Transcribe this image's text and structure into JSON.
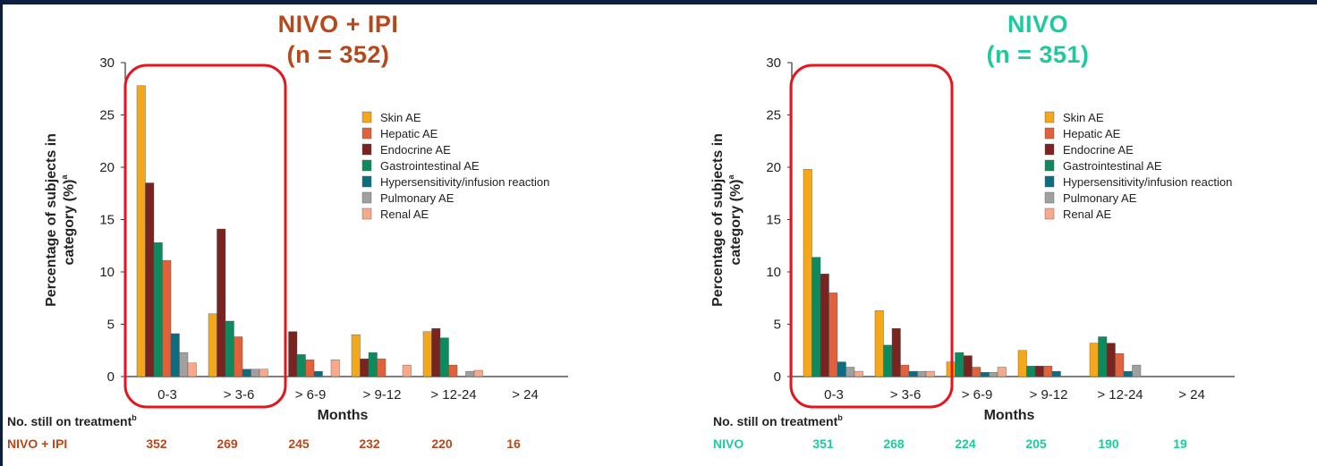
{
  "colors": {
    "skin": "#f5a71c",
    "hepatic": "#e0613a",
    "endocrine": "#7a2320",
    "gastrointestinal": "#0f8a5f",
    "hypersensitivity": "#0d6d80",
    "pulmonary": "#a0a0a0",
    "renal": "#f7a98a",
    "title_combo": "#b8471a",
    "title_mono": "#1fc9a0",
    "highlight": "#e8141c"
  },
  "footer": {
    "label": "No. still on treatment",
    "label_sup": "b"
  },
  "chart_data": [
    {
      "type": "bar",
      "title_line1": "NIVO + IPI",
      "title_line2": "(n = 352)",
      "xlabel": "Months",
      "ylabel_line1": "Percentage of subjects in",
      "ylabel_line2": "category (%)",
      "ylabel_sup": "a",
      "ylim": [
        0,
        30
      ],
      "yticks": [
        "0",
        "5",
        "10",
        "15",
        "20",
        "25",
        "30"
      ],
      "categories": [
        "0-3",
        "> 3-6",
        "> 6-9",
        "> 9-12",
        "> 12-24",
        "> 24"
      ],
      "series": [
        {
          "name": "Skin AE",
          "values": [
            27.8,
            6.0,
            0,
            4.0,
            4.3,
            0
          ]
        },
        {
          "name": "Hepatic AE",
          "values": [
            11.1,
            3.8,
            1.6,
            1.7,
            1.1,
            0
          ]
        },
        {
          "name": "Endocrine AE",
          "values": [
            18.5,
            14.1,
            4.3,
            1.7,
            4.6,
            0
          ]
        },
        {
          "name": "Gastrointestinal AE",
          "values": [
            12.8,
            5.3,
            2.1,
            2.3,
            3.7,
            0
          ]
        },
        {
          "name": "Hypersensitivity/infusion reaction",
          "values": [
            4.1,
            0.7,
            0.5,
            0,
            0,
            0
          ]
        },
        {
          "name": "Pulmonary AE",
          "values": [
            2.3,
            0.7,
            0,
            0,
            0.5,
            0
          ]
        },
        {
          "name": "Renal AE",
          "values": [
            1.3,
            0.7,
            1.6,
            1.1,
            0.6,
            0
          ]
        }
      ],
      "bar_order": [
        "Skin AE",
        "Endocrine AE",
        "Gastrointestinal AE",
        "Hepatic AE",
        "Hypersensitivity/infusion reaction",
        "Pulmonary AE",
        "Renal AE"
      ],
      "highlighted_categories": [
        "0-3",
        "> 3-6"
      ],
      "legend_position": "right",
      "treatment_label": "NIVO + IPI",
      "still_on_treatment": [
        "352",
        "269",
        "245",
        "232",
        "220",
        "16"
      ]
    },
    {
      "type": "bar",
      "title_line1": "NIVO",
      "title_line2": "(n = 351)",
      "xlabel": "Months",
      "ylabel_line1": "Percentage of subjects in",
      "ylabel_line2": "category (%)",
      "ylabel_sup": "a",
      "ylim": [
        0,
        30
      ],
      "yticks": [
        "0",
        "5",
        "10",
        "15",
        "20",
        "25",
        "30"
      ],
      "categories": [
        "0-3",
        "> 3-6",
        "> 6-9",
        "> 9-12",
        "> 12-24",
        "> 24"
      ],
      "series": [
        {
          "name": "Skin AE",
          "values": [
            19.8,
            6.3,
            1.4,
            2.5,
            3.2,
            0
          ]
        },
        {
          "name": "Hepatic AE",
          "values": [
            8.0,
            1.1,
            0.9,
            1.0,
            2.2,
            0
          ]
        },
        {
          "name": "Endocrine AE",
          "values": [
            9.8,
            4.6,
            2.0,
            1.0,
            3.2,
            0
          ]
        },
        {
          "name": "Gastrointestinal AE",
          "values": [
            11.4,
            3.0,
            2.3,
            1.0,
            3.8,
            0
          ]
        },
        {
          "name": "Hypersensitivity/infusion reaction",
          "values": [
            1.4,
            0.5,
            0.4,
            0.5,
            0.5,
            0
          ]
        },
        {
          "name": "Pulmonary AE",
          "values": [
            0.9,
            0.5,
            0.4,
            0,
            1.1,
            0
          ]
        },
        {
          "name": "Renal AE",
          "values": [
            0.5,
            0.5,
            0.9,
            0,
            0,
            0
          ]
        }
      ],
      "bar_order": [
        "Skin AE",
        "Gastrointestinal AE",
        "Endocrine AE",
        "Hepatic AE",
        "Hypersensitivity/infusion reaction",
        "Pulmonary AE",
        "Renal AE"
      ],
      "highlighted_categories": [
        "0-3",
        "> 3-6"
      ],
      "legend_position": "right",
      "treatment_label": "NIVO",
      "still_on_treatment": [
        "351",
        "268",
        "224",
        "205",
        "190",
        "19"
      ]
    }
  ]
}
